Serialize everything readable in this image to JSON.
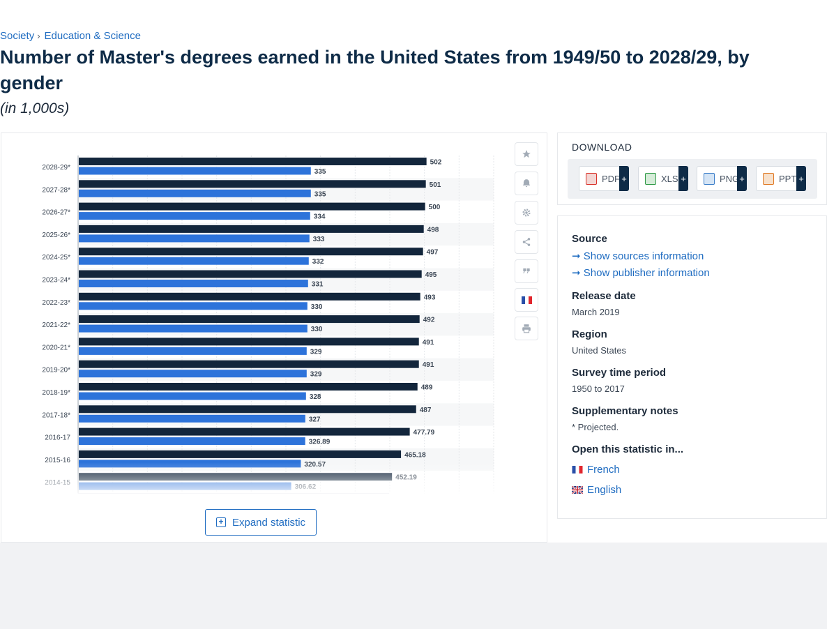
{
  "breadcrumb": {
    "items": [
      "Society",
      "Education & Science"
    ],
    "separator": "›"
  },
  "page": {
    "title": "Number of Master's degrees earned in the United States from 1949/50 to 2028/29, by gender",
    "subtitle": "(in 1,000s)"
  },
  "chart_data": {
    "type": "bar",
    "orientation": "horizontal",
    "categories": [
      "2028-29*",
      "2027-28*",
      "2026-27*",
      "2025-26*",
      "2024-25*",
      "2023-24*",
      "2022-23*",
      "2021-22*",
      "2020-21*",
      "2019-20*",
      "2018-19*",
      "2017-18*",
      "2016-17",
      "2015-16",
      "2014-15"
    ],
    "series": [
      {
        "values": [
          502,
          501,
          500,
          498,
          497,
          495,
          493,
          492,
          491,
          491,
          489,
          487,
          477.79,
          465.18,
          452.19
        ],
        "color": "#13263c"
      },
      {
        "values": [
          335,
          335,
          334,
          333,
          332,
          331,
          330,
          330,
          329,
          329,
          328,
          327,
          326.89,
          320.57,
          306.62
        ],
        "color": "#2d73da"
      }
    ],
    "value_labels": [
      [
        "502",
        "501",
        "500",
        "498",
        "497",
        "495",
        "493",
        "492",
        "491",
        "491",
        "489",
        "487",
        "477.79",
        "465.18",
        "452.19"
      ],
      [
        "335",
        "335",
        "334",
        "333",
        "332",
        "331",
        "330",
        "330",
        "329",
        "329",
        "328",
        "327",
        "326.89",
        "320.57",
        "306.62"
      ]
    ],
    "xlim": [
      0,
      600
    ],
    "grid": true,
    "legend": "none"
  },
  "chart_tools": {
    "icons": [
      "star-icon",
      "bell-icon",
      "gear-icon",
      "share-icon",
      "quote-icon",
      "french-flag-icon",
      "print-icon"
    ]
  },
  "expand_button": {
    "label": "Expand statistic"
  },
  "download": {
    "heading": "DOWNLOAD",
    "buttons": [
      {
        "label": "PDF",
        "icon": "pdf-file-icon",
        "color": "#d9332b"
      },
      {
        "label": "XLS",
        "icon": "xls-file-icon",
        "color": "#2f9a46"
      },
      {
        "label": "PNG",
        "icon": "png-file-icon",
        "color": "#3d7fc9"
      },
      {
        "label": "PPT",
        "icon": "ppt-file-icon",
        "color": "#e07a25"
      }
    ],
    "plus": "+"
  },
  "info": {
    "source_heading": "Source",
    "show_sources": "Show sources information",
    "show_publisher": "Show publisher information",
    "release_heading": "Release date",
    "release_value": "March 2019",
    "region_heading": "Region",
    "region_value": "United States",
    "survey_heading": "Survey time period",
    "survey_value": "1950 to 2017",
    "notes_heading": "Supplementary notes",
    "notes_value": "* Projected.",
    "open_heading": "Open this statistic in...",
    "languages": [
      "French",
      "English"
    ]
  }
}
